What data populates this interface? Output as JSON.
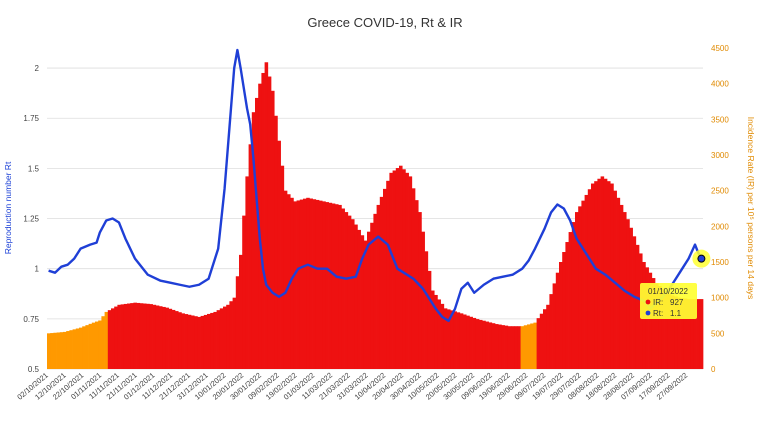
{
  "chart_data": {
    "type": "bar+line",
    "title": "Greece COVID-19, Rt & IR",
    "ylabel_left": "Reproduction number Rt",
    "ylabel_right": "Incidence Rate (IR) per 10⁵ persons per 14 days",
    "ylim_left": [
      0.5,
      2.1
    ],
    "ylim_right": [
      0,
      4500
    ],
    "yticks_left": [
      "0.5",
      "0.75",
      "1",
      "1.25",
      "1.5",
      "1.75",
      "2"
    ],
    "yticks_right": [
      "0",
      "500",
      "1000",
      "1500",
      "2000",
      "2500",
      "3000",
      "3500",
      "4000",
      "4500"
    ],
    "x_labels": [
      "02/10/2021",
      "12/10/2021",
      "22/10/2021",
      "01/11/2021",
      "11/11/2021",
      "21/11/2021",
      "01/12/2021",
      "11/12/2021",
      "21/12/2021",
      "31/12/2021",
      "10/01/2022",
      "20/01/2022",
      "30/01/2022",
      "09/02/2022",
      "19/02/2022",
      "01/03/2022",
      "11/03/2022",
      "21/03/2022",
      "31/03/2022",
      "10/04/2022",
      "20/04/2022",
      "30/04/2022",
      "10/05/2022",
      "20/05/2022",
      "30/05/2022",
      "09/06/2022",
      "19/06/2022",
      "29/06/2022",
      "09/07/2022",
      "19/07/2022",
      "29/07/2022",
      "08/08/2022",
      "18/08/2022",
      "28/08/2022",
      "07/09/2022",
      "17/09/2022",
      "27/09/2022"
    ],
    "ir_series": {
      "name": "IR",
      "points": [
        [
          0,
          500
        ],
        [
          5,
          520
        ],
        [
          10,
          580
        ],
        [
          14,
          650
        ],
        [
          16,
          680
        ],
        [
          18,
          800
        ],
        [
          22,
          900
        ],
        [
          27,
          930
        ],
        [
          32,
          910
        ],
        [
          37,
          860
        ],
        [
          42,
          780
        ],
        [
          47,
          730
        ],
        [
          52,
          800
        ],
        [
          56,
          900
        ],
        [
          58,
          1000
        ],
        [
          60,
          1600
        ],
        [
          62,
          2700
        ],
        [
          64,
          3600
        ],
        [
          66,
          4000
        ],
        [
          68,
          4300
        ],
        [
          70,
          3900
        ],
        [
          72,
          3200
        ],
        [
          74,
          2500
        ],
        [
          77,
          2350
        ],
        [
          81,
          2400
        ],
        [
          86,
          2350
        ],
        [
          91,
          2300
        ],
        [
          95,
          2100
        ],
        [
          99,
          1800
        ],
        [
          103,
          2300
        ],
        [
          107,
          2750
        ],
        [
          110,
          2850
        ],
        [
          113,
          2700
        ],
        [
          116,
          2200
        ],
        [
          120,
          1100
        ],
        [
          124,
          850
        ],
        [
          129,
          780
        ],
        [
          134,
          700
        ],
        [
          140,
          630
        ],
        [
          144,
          600
        ],
        [
          148,
          600
        ],
        [
          152,
          650
        ],
        [
          156,
          900
        ],
        [
          160,
          1500
        ],
        [
          165,
          2200
        ],
        [
          170,
          2600
        ],
        [
          173,
          2700
        ],
        [
          176,
          2600
        ],
        [
          181,
          2100
        ],
        [
          186,
          1500
        ],
        [
          190,
          1200
        ],
        [
          194,
          1050
        ],
        [
          197,
          1000
        ],
        [
          200,
          980
        ]
      ],
      "orange_ranges": [
        [
          0,
          18
        ],
        [
          148,
          152
        ]
      ]
    },
    "rt_series": {
      "name": "Rt",
      "points": [
        [
          0,
          0.99
        ],
        [
          2,
          0.98
        ],
        [
          4,
          1.01
        ],
        [
          6,
          1.02
        ],
        [
          8,
          1.05
        ],
        [
          10,
          1.1
        ],
        [
          13,
          1.12
        ],
        [
          15,
          1.13
        ],
        [
          16,
          1.18
        ],
        [
          18,
          1.24
        ],
        [
          20,
          1.25
        ],
        [
          22,
          1.23
        ],
        [
          24,
          1.15
        ],
        [
          27,
          1.05
        ],
        [
          31,
          0.97
        ],
        [
          35,
          0.94
        ],
        [
          38,
          0.93
        ],
        [
          41,
          0.92
        ],
        [
          44,
          0.91
        ],
        [
          47,
          0.92
        ],
        [
          50,
          0.95
        ],
        [
          53,
          1.1
        ],
        [
          55,
          1.4
        ],
        [
          57,
          1.8
        ],
        [
          58,
          2.0
        ],
        [
          59,
          2.09
        ],
        [
          60,
          2.0
        ],
        [
          61,
          1.9
        ],
        [
          62,
          1.8
        ],
        [
          63,
          1.72
        ],
        [
          64,
          1.55
        ],
        [
          65,
          1.35
        ],
        [
          66,
          1.15
        ],
        [
          67,
          1.0
        ],
        [
          68,
          0.92
        ],
        [
          70,
          0.88
        ],
        [
          72,
          0.86
        ],
        [
          74,
          0.88
        ],
        [
          76,
          0.95
        ],
        [
          78,
          1.0
        ],
        [
          81,
          1.02
        ],
        [
          84,
          1.0
        ],
        [
          87,
          1.0
        ],
        [
          90,
          0.96
        ],
        [
          93,
          0.95
        ],
        [
          96,
          0.96
        ],
        [
          98,
          1.05
        ],
        [
          100,
          1.12
        ],
        [
          103,
          1.16
        ],
        [
          106,
          1.12
        ],
        [
          109,
          1.0
        ],
        [
          111,
          0.98
        ],
        [
          114,
          0.95
        ],
        [
          117,
          0.9
        ],
        [
          119,
          0.85
        ],
        [
          121,
          0.8
        ],
        [
          123,
          0.76
        ],
        [
          125,
          0.74
        ],
        [
          127,
          0.8
        ],
        [
          129,
          0.9
        ],
        [
          131,
          0.93
        ],
        [
          133,
          0.88
        ],
        [
          136,
          0.92
        ],
        [
          139,
          0.95
        ],
        [
          142,
          0.96
        ],
        [
          145,
          0.97
        ],
        [
          148,
          1.0
        ],
        [
          150,
          1.04
        ],
        [
          152,
          1.1
        ],
        [
          155,
          1.2
        ],
        [
          157,
          1.28
        ],
        [
          159,
          1.32
        ],
        [
          161,
          1.3
        ],
        [
          163,
          1.24
        ],
        [
          165,
          1.15
        ],
        [
          167,
          1.1
        ],
        [
          169,
          1.05
        ],
        [
          171,
          1.0
        ],
        [
          174,
          0.97
        ],
        [
          177,
          0.93
        ],
        [
          180,
          0.89
        ],
        [
          183,
          0.86
        ],
        [
          186,
          0.84
        ],
        [
          188,
          0.8
        ],
        [
          190,
          0.83
        ],
        [
          192,
          0.86
        ],
        [
          194,
          0.9
        ],
        [
          196,
          0.95
        ],
        [
          198,
          1.0
        ],
        [
          200,
          1.05
        ],
        [
          202,
          1.12
        ],
        [
          203,
          1.08
        ],
        [
          204,
          1.05
        ]
      ]
    },
    "tooltip": {
      "date": "01/10/2022",
      "ir_label": "IR:",
      "ir_value": "927",
      "rt_label": "Rt:",
      "rt_value": "1.1"
    },
    "colors": {
      "bars": "#ee1111",
      "bars_highlight": "#ff9900",
      "rt_line": "#1f3fd6",
      "right_axis": "#e08a00",
      "tooltip_bg": "#ffff33"
    }
  }
}
